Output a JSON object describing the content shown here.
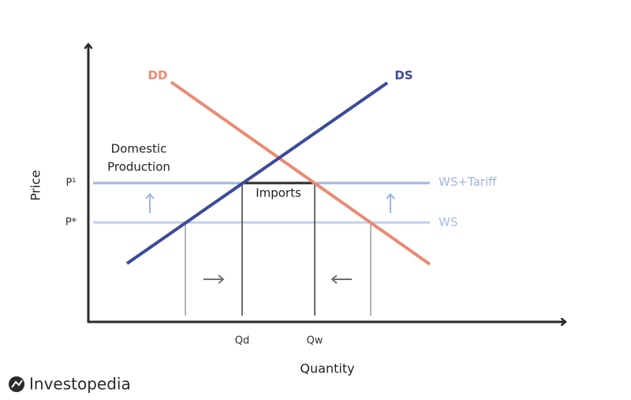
{
  "curves": {
    "demand": "DD",
    "supply": "DS"
  },
  "price_lines": {
    "tariff": "WS+Tariff",
    "world": "WS"
  },
  "regions": {
    "domestic_production": [
      "Domestic",
      "Production"
    ],
    "imports": "Imports"
  },
  "price_labels": {
    "tariff": "P¹",
    "world": "P*"
  },
  "quantity_labels": {
    "domestic": "Qd",
    "world": "Qw"
  },
  "axes": {
    "x": "Quantity",
    "y": "Price"
  },
  "brand": "Investopedia"
}
